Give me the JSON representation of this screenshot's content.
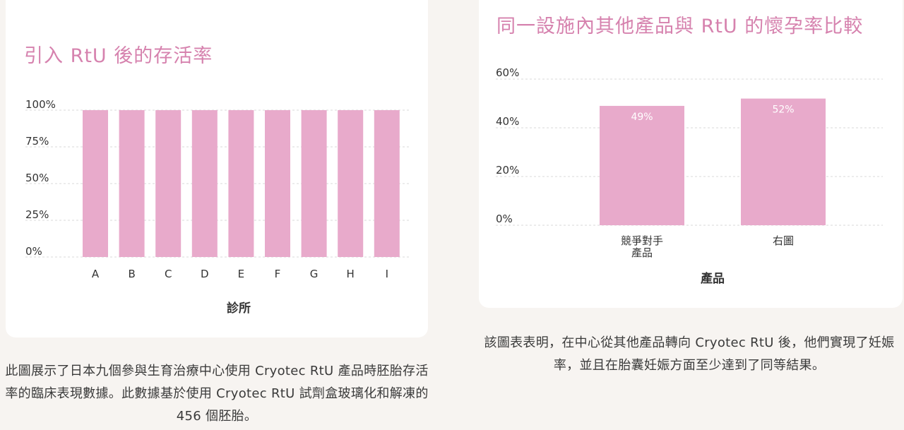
{
  "chart_data": [
    {
      "type": "bar",
      "title": "引入 RtU 後的存活率",
      "xlabel": "診所",
      "ylabel": "",
      "categories": [
        "A",
        "B",
        "C",
        "D",
        "E",
        "F",
        "G",
        "H",
        "I"
      ],
      "values": [
        100,
        100,
        100,
        100,
        100,
        100,
        100,
        100,
        100
      ],
      "ylim": [
        0,
        100
      ],
      "yticks": [
        "0%",
        "25%",
        "50%",
        "75%",
        "100%"
      ],
      "bar_color": "#e8aacb",
      "grid": true
    },
    {
      "type": "bar",
      "title": "同一設施內其他產品與 RtU 的懷孕率比較",
      "xlabel": "產品",
      "ylabel": "",
      "categories": [
        [
          "競爭對手",
          "產品"
        ],
        [
          "右圖"
        ]
      ],
      "values": [
        49,
        52
      ],
      "data_labels": [
        "49%",
        "52%"
      ],
      "ylim": [
        0,
        60
      ],
      "yticks": [
        "0%",
        "20%",
        "40%",
        "60%"
      ],
      "bar_color": "#e8aacb",
      "grid": true
    }
  ],
  "captions": {
    "left": "此圖展示了日本九個參與生育治療中心使用 Cryotec RtU 產品時胚胎存活率的臨床表現數據。此數據基於使用 Cryotec RtU 試劑盒玻璃化和解凍的 456 個胚胎。",
    "right": "該圖表表明，在中心從其他產品轉向 Cryotec RtU 後，他們實現了妊娠率，並且在胎囊妊娠方面至少達到了同等結果。"
  },
  "colors": {
    "accent": "#d682ae",
    "bar": "#e8aacb",
    "background": "#f7f4f1"
  }
}
